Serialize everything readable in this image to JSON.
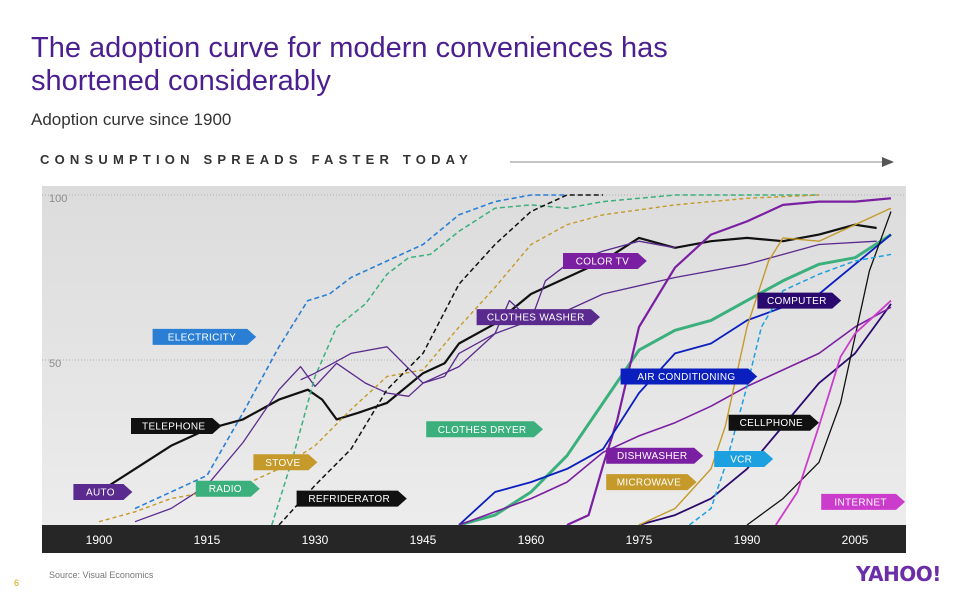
{
  "slide": {
    "title": "The adoption curve for modern conveniences has shortened considerably",
    "subtitle": "Adoption curve since 1900",
    "banner": "CONSUMPTION SPREADS FASTER TODAY",
    "page_number": "6",
    "source": "Source: Visual Economics",
    "logo": "YAHOO!"
  },
  "colors": {
    "title": "#4b1f8f",
    "plot_top": "#dcdcdc",
    "plot_bottom": "#ececec",
    "axis_bar": "#262626"
  },
  "chart_data": {
    "type": "line",
    "title": "CONSUMPTION SPREADS FASTER TODAY",
    "xlim": [
      1900,
      2012
    ],
    "ylim": [
      0,
      100
    ],
    "x_ticks": [
      1900,
      1915,
      1930,
      1945,
      1960,
      1975,
      1990,
      2005
    ],
    "y_ticks": [
      50,
      100
    ],
    "grid": "dotted lines at 50 and 100",
    "series": [
      {
        "name": "TELEPHONE",
        "color": "#111111",
        "width": 2.2,
        "dash": "",
        "label_year": 1910,
        "label_value": 30,
        "x": [
          1900,
          1905,
          1910,
          1915,
          1920,
          1925,
          1929,
          1931,
          1933,
          1936,
          1940,
          1945,
          1948,
          1950,
          1955,
          1960,
          1965,
          1970,
          1975,
          1980,
          1985,
          1990,
          1995,
          2000,
          2005,
          2008
        ],
        "y": [
          10,
          17,
          24,
          29,
          32,
          38,
          41,
          38,
          32,
          34,
          37,
          46,
          49,
          55,
          61,
          70,
          75,
          80,
          87,
          84,
          86,
          87,
          86,
          88,
          91,
          90
        ]
      },
      {
        "name": "ELECTRICITY",
        "color": "#2a7fd4",
        "width": 1.6,
        "dash": "5,3",
        "label_year": 1913,
        "label_value": 57,
        "x": [
          1905,
          1910,
          1915,
          1920,
          1925,
          1929,
          1932,
          1935,
          1940,
          1945,
          1950,
          1955,
          1960,
          1965
        ],
        "y": [
          5,
          10,
          15,
          34,
          54,
          68,
          70,
          75,
          80,
          85,
          94,
          98,
          100,
          100
        ]
      },
      {
        "name": "AUTO",
        "color": "#5a2a8e",
        "width": 1.3,
        "dash": "",
        "label_year": 1902,
        "label_value": 10,
        "x": [
          1905,
          1910,
          1915,
          1920,
          1925,
          1928,
          1930,
          1933,
          1937,
          1940,
          1943,
          1945,
          1948,
          1950,
          1955,
          1960,
          1965,
          1970,
          1980,
          1990,
          2000,
          2008
        ],
        "y": [
          1,
          5,
          12,
          25,
          41,
          48,
          42,
          49,
          43,
          40,
          39,
          43,
          45,
          52,
          58,
          62,
          65,
          70,
          75,
          79,
          85,
          86
        ]
      },
      {
        "name": "RADIO",
        "color": "#3bb07c",
        "width": 1.5,
        "dash": "5,3",
        "label_year": 1919,
        "label_value": 11,
        "x": [
          1924,
          1927,
          1930,
          1933,
          1937,
          1940,
          1943,
          1946,
          1950,
          1955,
          1960,
          1965,
          1970,
          1975,
          1980,
          2000
        ],
        "y": [
          0,
          21,
          45,
          60,
          67,
          76,
          81,
          82,
          89,
          96,
          97,
          96,
          98,
          99,
          100,
          100
        ]
      },
      {
        "name": "STOVE",
        "color": "#c59a2a",
        "width": 1.4,
        "dash": "4,3",
        "label_year": 1927,
        "label_value": 19,
        "x": [
          1900,
          1905,
          1910,
          1915,
          1920,
          1925,
          1930,
          1935,
          1940,
          1945,
          1950,
          1955,
          1960,
          1965,
          1970,
          1980,
          1990,
          2000
        ],
        "y": [
          1,
          4,
          8,
          10,
          12,
          17,
          24,
          35,
          45,
          47,
          60,
          72,
          85,
          91,
          94,
          97,
          99,
          100
        ]
      },
      {
        "name": "REFRIDERATOR",
        "color": "#111111",
        "width": 1.5,
        "dash": "5,3",
        "label_year": 1933,
        "label_value": 8,
        "x": [
          1925,
          1930,
          1935,
          1940,
          1945,
          1950,
          1955,
          1960,
          1965,
          1970
        ],
        "y": [
          0,
          12,
          23,
          41,
          52,
          73,
          85,
          95,
          100,
          100
        ]
      },
      {
        "name": "CLOTHES WASHER",
        "color": "#5a2a8e",
        "width": 1.3,
        "dash": "",
        "label_year": 1958,
        "label_value": 63,
        "x": [
          1928,
          1930,
          1935,
          1940,
          1945,
          1950,
          1955,
          1957,
          1960,
          1962,
          1965,
          1970,
          1975,
          1980
        ],
        "y": [
          44,
          46,
          52,
          54,
          43,
          48,
          58,
          68,
          62,
          74,
          79,
          83,
          86,
          84
        ]
      },
      {
        "name": "CLOTHES DRYER",
        "color": "#3bb07c",
        "width": 3,
        "dash": "",
        "label_year": 1951,
        "label_value": 29,
        "x": [
          1950,
          1955,
          1960,
          1965,
          1970,
          1975,
          1980,
          1985,
          1990,
          1995,
          2000,
          2005,
          2010
        ],
        "y": [
          0,
          3,
          10,
          21,
          37,
          53,
          59,
          62,
          68,
          74,
          79,
          81,
          88
        ]
      },
      {
        "name": "COLOR TV",
        "color": "#7b1fa2",
        "width": 2.2,
        "dash": "",
        "label_year": 1970,
        "label_value": 80,
        "x": [
          1965,
          1968,
          1970,
          1972,
          1975,
          1980,
          1985,
          1990,
          1995,
          2000,
          2005,
          2010
        ],
        "y": [
          0,
          3,
          18,
          32,
          60,
          78,
          88,
          92,
          97,
          98,
          98,
          99
        ]
      },
      {
        "name": "AIR CONDITIONING",
        "color": "#0b1fbf",
        "width": 1.8,
        "dash": "",
        "label_year": 1978,
        "label_value": 45,
        "x": [
          1950,
          1955,
          1960,
          1965,
          1970,
          1975,
          1980,
          1985,
          1990,
          1995,
          2000,
          2005,
          2010
        ],
        "y": [
          0,
          10,
          13,
          17,
          23,
          40,
          52,
          55,
          62,
          66,
          70,
          79,
          88
        ]
      },
      {
        "name": "COMPUTER",
        "color": "#2a0a6e",
        "width": 1.8,
        "dash": "",
        "label_year": 1997,
        "label_value": 68,
        "x": [
          1975,
          1980,
          1985,
          1990,
          1995,
          2000,
          2005,
          2010
        ],
        "y": [
          0,
          3,
          8,
          17,
          30,
          43,
          52,
          67
        ]
      },
      {
        "name": "DISHWASHER",
        "color": "#7b1fa2",
        "width": 1.6,
        "dash": "",
        "label_year": 1976,
        "label_value": 21,
        "x": [
          1950,
          1955,
          1960,
          1965,
          1970,
          1975,
          1980,
          1985,
          1990,
          1995,
          2000,
          2005,
          2010
        ],
        "y": [
          0,
          4,
          8,
          13,
          22,
          27,
          31,
          36,
          42,
          47,
          52,
          60,
          66
        ]
      },
      {
        "name": "CELLPHONE",
        "color": "#111111",
        "width": 1.3,
        "dash": "",
        "label_year": 1993,
        "label_value": 31,
        "x": [
          1990,
          1995,
          2000,
          2003,
          2005,
          2007,
          2010
        ],
        "y": [
          0,
          8,
          19,
          37,
          57,
          77,
          95
        ]
      },
      {
        "name": "VCR",
        "color": "#1da0e0",
        "width": 1.5,
        "dash": "5,3",
        "label_year": 1991,
        "label_value": 20,
        "x": [
          1982,
          1985,
          1987,
          1990,
          1992,
          1995,
          2000,
          2005,
          2010
        ],
        "y": [
          0,
          5,
          18,
          42,
          60,
          71,
          76,
          80,
          82
        ]
      },
      {
        "name": "MICROWAVE",
        "color": "#c59a2a",
        "width": 1.4,
        "dash": "",
        "label_year": 1976,
        "label_value": 13,
        "x": [
          1975,
          1980,
          1985,
          1987,
          1990,
          1993,
          1995,
          2000,
          2005,
          2010
        ],
        "y": [
          0,
          5,
          17,
          30,
          60,
          80,
          87,
          86,
          91,
          96
        ]
      },
      {
        "name": "INTERNET",
        "color": "#cc3ccc",
        "width": 1.8,
        "dash": "",
        "label_year": 2006,
        "label_value": 7,
        "x": [
          1994,
          1997,
          2000,
          2003,
          2005,
          2010
        ],
        "y": [
          0,
          10,
          30,
          51,
          58,
          68
        ]
      }
    ]
  }
}
